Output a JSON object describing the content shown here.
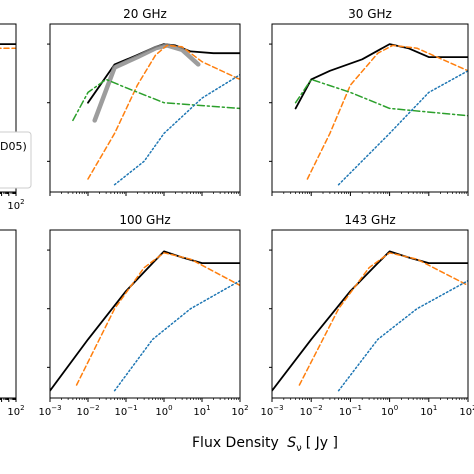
{
  "figure": {
    "xlabel": "Flux Density",
    "xlabel_math": "S",
    "xlabel_sub": "ν",
    "xlabel_unit": "[ Jy ]",
    "legend_fragment": "D05)"
  },
  "colors": {
    "total_model": "#000000",
    "data_grey": "#8c8c8c",
    "orange_dashed": "#ff7f0e",
    "green_dashdot": "#2ca02c",
    "blue_dotted": "#1f77b4",
    "red_points": "#d62728",
    "blue_points": "#5a5adc",
    "purple_points": "#9467bd"
  },
  "chart_data": [
    {
      "type": "line",
      "title": "",
      "note": "cropped panel, top-left",
      "xscale": "log",
      "yscale": "log",
      "xlim": [
        0.001,
        100
      ],
      "x_tick_labels_visible": [
        "10^2"
      ],
      "series": [
        {
          "name": "",
          "style": "solid black",
          "x": [
            0.001,
            100
          ],
          "y": [
            1.0,
            1.0
          ]
        },
        {
          "name": "",
          "style": "dashed orange",
          "x": [
            0.001,
            100
          ],
          "y": [
            0.85,
            0.85
          ]
        }
      ]
    },
    {
      "type": "line",
      "title": "20 GHz",
      "xscale": "log",
      "yscale": "log",
      "xlim": [
        0.001,
        100
      ],
      "series": [
        {
          "name": "",
          "style": "solid black",
          "x": [
            0.01,
            0.05,
            0.2,
            0.6,
            1.0,
            2.0,
            5.0,
            20,
            100
          ],
          "y": [
            0.1,
            0.45,
            0.65,
            0.9,
            1.0,
            0.95,
            0.75,
            0.7,
            0.7
          ]
        },
        {
          "name": "",
          "style": "thick grey",
          "x": [
            0.015,
            0.05,
            0.2,
            0.6,
            1.2,
            3.0,
            8.0
          ],
          "y": [
            0.05,
            0.4,
            0.6,
            0.85,
            0.95,
            0.8,
            0.45
          ]
        },
        {
          "name": "",
          "style": "dashed orange",
          "x": [
            0.01,
            0.05,
            0.2,
            0.6,
            1.2,
            3.0,
            10,
            100
          ],
          "y": [
            0.005,
            0.03,
            0.2,
            0.65,
            0.95,
            0.9,
            0.5,
            0.25
          ]
        },
        {
          "name": "",
          "style": "dashdot green",
          "x": [
            0.004,
            0.01,
            0.03,
            0.1,
            1.0,
            100
          ],
          "y": [
            0.05,
            0.15,
            0.25,
            0.18,
            0.1,
            0.08
          ]
        },
        {
          "name": "",
          "style": "dotted blue",
          "x": [
            0.05,
            0.3,
            1.0,
            10,
            100
          ],
          "y": [
            0.004,
            0.01,
            0.03,
            0.12,
            0.3
          ]
        }
      ]
    },
    {
      "type": "line",
      "title": "30 GHz",
      "xscale": "log",
      "yscale": "log",
      "xlim": [
        0.001,
        100
      ],
      "series": [
        {
          "name": "",
          "style": "solid black",
          "x": [
            0.004,
            0.01,
            0.03,
            0.2,
            1.0,
            3.0,
            10,
            100
          ],
          "y": [
            0.08,
            0.25,
            0.35,
            0.55,
            1.0,
            0.85,
            0.6,
            0.6
          ]
        },
        {
          "name": "",
          "style": "dashed orange",
          "x": [
            0.008,
            0.03,
            0.1,
            0.5,
            1.2,
            5.0,
            100
          ],
          "y": [
            0.005,
            0.03,
            0.2,
            0.7,
            0.95,
            0.85,
            0.35
          ]
        },
        {
          "name": "",
          "style": "dashdot green",
          "x": [
            0.004,
            0.01,
            0.1,
            1.0,
            100
          ],
          "y": [
            0.1,
            0.25,
            0.15,
            0.08,
            0.06
          ]
        },
        {
          "name": "",
          "style": "dotted blue",
          "x": [
            0.05,
            1.0,
            10,
            100
          ],
          "y": [
            0.004,
            0.03,
            0.15,
            0.35
          ]
        }
      ]
    },
    {
      "type": "line",
      "title": "",
      "note": "cropped panel, bottom-left",
      "xscale": "log",
      "yscale": "log",
      "xlim": [
        0.001,
        100
      ],
      "x_tick_labels_visible": [
        "10^2"
      ],
      "series": []
    },
    {
      "type": "line",
      "title": "100 GHz",
      "xscale": "log",
      "yscale": "log",
      "xlim": [
        0.001,
        100
      ],
      "x_tick_labels": [
        "10^-3",
        "10^-2",
        "10^-1",
        "10^0",
        "10^1",
        "10^2"
      ],
      "series": [
        {
          "name": "",
          "style": "solid black",
          "x": [
            0.001,
            0.01,
            0.1,
            0.5,
            1.0,
            3.0,
            10,
            100
          ],
          "y": [
            0.004,
            0.03,
            0.2,
            0.6,
            0.95,
            0.75,
            0.6,
            0.6
          ]
        },
        {
          "name": "",
          "style": "dashed orange",
          "x": [
            0.005,
            0.05,
            0.3,
            1.0,
            5.0,
            100
          ],
          "y": [
            0.005,
            0.1,
            0.5,
            0.9,
            0.7,
            0.25
          ]
        },
        {
          "name": "",
          "style": "dotted blue",
          "x": [
            0.05,
            0.5,
            5.0,
            100
          ],
          "y": [
            0.004,
            0.03,
            0.1,
            0.3
          ]
        }
      ]
    },
    {
      "type": "line",
      "title": "143 GHz",
      "xscale": "log",
      "yscale": "log",
      "xlim": [
        0.001,
        100
      ],
      "x_tick_labels": [
        "10^-3",
        "10^-2",
        "10^-1",
        "10^0",
        "10^1",
        "10^2"
      ],
      "series": [
        {
          "name": "",
          "style": "solid black",
          "x": [
            0.001,
            0.01,
            0.1,
            0.5,
            1.0,
            3.0,
            10,
            100
          ],
          "y": [
            0.004,
            0.03,
            0.2,
            0.6,
            0.95,
            0.75,
            0.6,
            0.6
          ]
        },
        {
          "name": "",
          "style": "dashed orange",
          "x": [
            0.005,
            0.05,
            0.3,
            1.0,
            5.0,
            100
          ],
          "y": [
            0.005,
            0.1,
            0.5,
            0.9,
            0.7,
            0.25
          ]
        },
        {
          "name": "",
          "style": "dotted blue",
          "x": [
            0.05,
            0.5,
            5.0,
            100
          ],
          "y": [
            0.004,
            0.03,
            0.1,
            0.3
          ]
        }
      ]
    }
  ]
}
